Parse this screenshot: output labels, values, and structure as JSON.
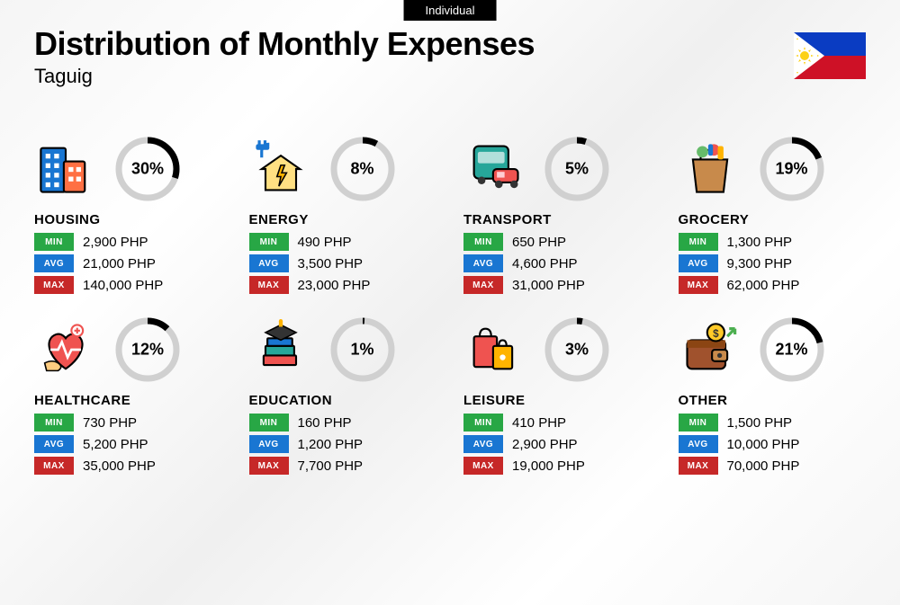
{
  "tab_label": "Individual",
  "title": "Distribution of Monthly Expenses",
  "subtitle": "Taguig",
  "currency": "PHP",
  "donut": {
    "track_color": "#d0d0d0",
    "arc_color": "#000000",
    "stroke_width": 7,
    "radius": 32
  },
  "badges": {
    "min": {
      "label": "MIN",
      "color": "#28a745"
    },
    "avg": {
      "label": "AVG",
      "color": "#1976d2"
    },
    "max": {
      "label": "MAX",
      "color": "#c62828"
    }
  },
  "flag": {
    "blue": "#0a3cc2",
    "red": "#ce1126",
    "white": "#ffffff",
    "yellow": "#fcd116"
  },
  "categories": [
    {
      "name": "HOUSING",
      "percent": 30,
      "min": "2,900 PHP",
      "avg": "21,000 PHP",
      "max": "140,000 PHP",
      "icon": "buildings"
    },
    {
      "name": "ENERGY",
      "percent": 8,
      "min": "490 PHP",
      "avg": "3,500 PHP",
      "max": "23,000 PHP",
      "icon": "energy"
    },
    {
      "name": "TRANSPORT",
      "percent": 5,
      "min": "650 PHP",
      "avg": "4,600 PHP",
      "max": "31,000 PHP",
      "icon": "transport"
    },
    {
      "name": "GROCERY",
      "percent": 19,
      "min": "1,300 PHP",
      "avg": "9,300 PHP",
      "max": "62,000 PHP",
      "icon": "grocery"
    },
    {
      "name": "HEALTHCARE",
      "percent": 12,
      "min": "730 PHP",
      "avg": "5,200 PHP",
      "max": "35,000 PHP",
      "icon": "healthcare"
    },
    {
      "name": "EDUCATION",
      "percent": 1,
      "min": "160 PHP",
      "avg": "1,200 PHP",
      "max": "7,700 PHP",
      "icon": "education"
    },
    {
      "name": "LEISURE",
      "percent": 3,
      "min": "410 PHP",
      "avg": "2,900 PHP",
      "max": "19,000 PHP",
      "icon": "leisure"
    },
    {
      "name": "OTHER",
      "percent": 21,
      "min": "1,500 PHP",
      "avg": "10,000 PHP",
      "max": "70,000 PHP",
      "icon": "wallet"
    }
  ]
}
